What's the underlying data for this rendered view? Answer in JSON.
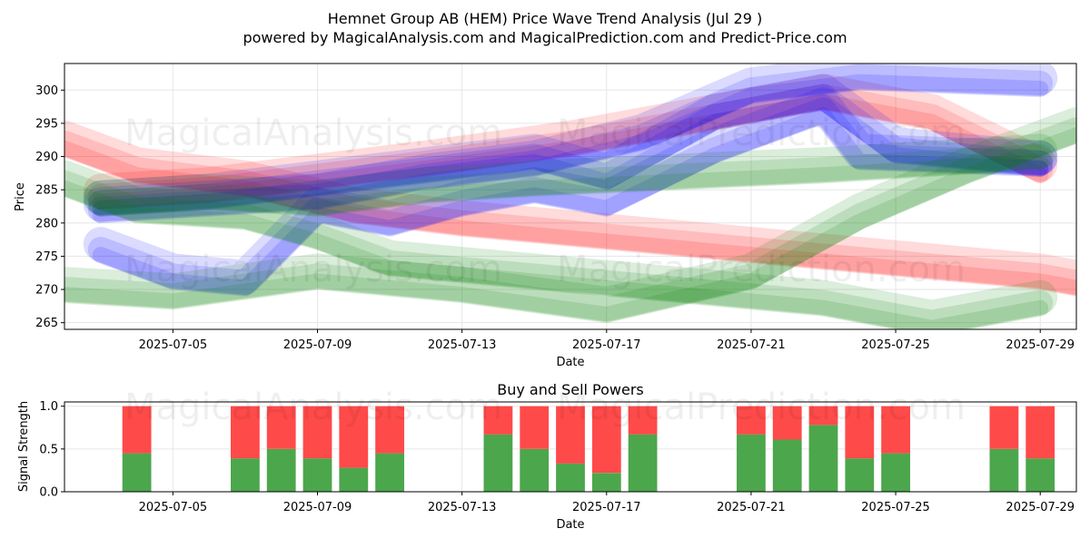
{
  "header": {
    "title": "Hemnet Group AB (HEM) Price Wave Trend Analysis (Jul 29 )",
    "subtitle": "powered by MagicalAnalysis.com and MagicalPrediction.com and Predict-Price.com"
  },
  "watermarks": {
    "analysis": "MagicalAnalysis.com",
    "prediction": "MagicalPrediction.com"
  },
  "chart_data": [
    {
      "type": "area",
      "title": "",
      "xlabel": "Date",
      "ylabel": "Price",
      "xlim": [
        "2025-07-02",
        "2025-07-30"
      ],
      "ylim": [
        264,
        304
      ],
      "x_ticks": [
        "2025-07-05",
        "2025-07-09",
        "2025-07-13",
        "2025-07-17",
        "2025-07-21",
        "2025-07-25",
        "2025-07-29"
      ],
      "y_ticks": [
        265,
        270,
        275,
        280,
        285,
        290,
        295,
        300
      ],
      "grid": true,
      "series": [
        {
          "color": "#ff0000",
          "points": [
            [
              "2025-07-02",
              292
            ],
            [
              "2025-07-04",
              288
            ],
            [
              "2025-07-07",
              286
            ],
            [
              "2025-07-10",
              282
            ],
            [
              "2025-07-13",
              280
            ],
            [
              "2025-07-17",
              278
            ],
            [
              "2025-07-21",
              276
            ],
            [
              "2025-07-25",
              274
            ],
            [
              "2025-07-29",
              272
            ],
            [
              "2025-07-30",
              271
            ]
          ]
        },
        {
          "color": "#ff0000",
          "points": [
            [
              "2025-07-03",
              284
            ],
            [
              "2025-07-06",
              285
            ],
            [
              "2025-07-09",
              287
            ],
            [
              "2025-07-12",
              289
            ],
            [
              "2025-07-16",
              292
            ],
            [
              "2025-07-20",
              296
            ],
            [
              "2025-07-23",
              299
            ],
            [
              "2025-07-26",
              296
            ],
            [
              "2025-07-29",
              288
            ]
          ]
        },
        {
          "color": "#0000ff",
          "points": [
            [
              "2025-07-03",
              283
            ],
            [
              "2025-07-06",
              284
            ],
            [
              "2025-07-09",
              286
            ],
            [
              "2025-07-12",
              288
            ],
            [
              "2025-07-15",
              290
            ],
            [
              "2025-07-17",
              287
            ],
            [
              "2025-07-20",
              296
            ],
            [
              "2025-07-23",
              299
            ],
            [
              "2025-07-25",
              291
            ],
            [
              "2025-07-29",
              289
            ]
          ]
        },
        {
          "color": "#0000ff",
          "points": [
            [
              "2025-07-03",
              276
            ],
            [
              "2025-07-05",
              272
            ],
            [
              "2025-07-07",
              271
            ],
            [
              "2025-07-09",
              282
            ],
            [
              "2025-07-11",
              280
            ],
            [
              "2025-07-13",
              283
            ],
            [
              "2025-07-15",
              285
            ],
            [
              "2025-07-17",
              283
            ],
            [
              "2025-07-20",
              291
            ],
            [
              "2025-07-23",
              297
            ],
            [
              "2025-07-24",
              290
            ],
            [
              "2025-07-29",
              289
            ]
          ]
        },
        {
          "color": "#0000ff",
          "points": [
            [
              "2025-07-03",
              282
            ],
            [
              "2025-07-06",
              283
            ],
            [
              "2025-07-09",
              284
            ],
            [
              "2025-07-12",
              287
            ],
            [
              "2025-07-15",
              289
            ],
            [
              "2025-07-18",
              293
            ],
            [
              "2025-07-21",
              300
            ],
            [
              "2025-07-24",
              302
            ],
            [
              "2025-07-29",
              301
            ]
          ]
        },
        {
          "color": "#008000",
          "points": [
            [
              "2025-07-02",
              270
            ],
            [
              "2025-07-05",
              269
            ],
            [
              "2025-07-09",
              272
            ],
            [
              "2025-07-13",
              270
            ],
            [
              "2025-07-17",
              267
            ],
            [
              "2025-07-21",
              272
            ],
            [
              "2025-07-24",
              281
            ],
            [
              "2025-07-27",
              288
            ],
            [
              "2025-07-30",
              294
            ]
          ]
        },
        {
          "color": "#008000",
          "points": [
            [
              "2025-07-02",
              286
            ],
            [
              "2025-07-04",
              282
            ],
            [
              "2025-07-07",
              281
            ],
            [
              "2025-07-09",
              278
            ],
            [
              "2025-07-11",
              274
            ],
            [
              "2025-07-15",
              272
            ],
            [
              "2025-07-19",
              270
            ],
            [
              "2025-07-23",
              268
            ],
            [
              "2025-07-26",
              265
            ],
            [
              "2025-07-29",
              268
            ]
          ]
        },
        {
          "color": "#008000",
          "points": [
            [
              "2025-07-03",
              283
            ],
            [
              "2025-07-06",
              284
            ],
            [
              "2025-07-09",
              283
            ],
            [
              "2025-07-12",
              285
            ],
            [
              "2025-07-15",
              286
            ],
            [
              "2025-07-19",
              287
            ],
            [
              "2025-07-23",
              288
            ],
            [
              "2025-07-26",
              289
            ],
            [
              "2025-07-29",
              290
            ]
          ]
        }
      ]
    },
    {
      "type": "bar",
      "title": "Buy and Sell Powers",
      "xlabel": "Date",
      "ylabel": "Signal Strength",
      "xlim": [
        "2025-07-02",
        "2025-07-30"
      ],
      "ylim": [
        0,
        1.05
      ],
      "x_ticks": [
        "2025-07-05",
        "2025-07-09",
        "2025-07-13",
        "2025-07-17",
        "2025-07-21",
        "2025-07-25",
        "2025-07-29"
      ],
      "y_ticks": [
        0.0,
        0.5,
        1.0
      ],
      "grid": true,
      "buy_color": "#4ca64c",
      "sell_color": "#ff4a4a",
      "dates": [
        "2025-07-04",
        "2025-07-07",
        "2025-07-08",
        "2025-07-09",
        "2025-07-10",
        "2025-07-11",
        "2025-07-14",
        "2025-07-15",
        "2025-07-16",
        "2025-07-17",
        "2025-07-18",
        "2025-07-21",
        "2025-07-22",
        "2025-07-23",
        "2025-07-24",
        "2025-07-25",
        "2025-07-28",
        "2025-07-29"
      ],
      "buy": [
        0.45,
        0.39,
        0.5,
        0.39,
        0.28,
        0.45,
        0.67,
        0.5,
        0.33,
        0.22,
        0.67,
        0.67,
        0.61,
        0.78,
        0.39,
        0.45,
        0.5,
        0.39
      ],
      "sell": [
        0.55,
        0.61,
        0.5,
        0.61,
        0.72,
        0.55,
        0.33,
        0.5,
        0.67,
        0.78,
        0.33,
        0.33,
        0.39,
        0.22,
        0.61,
        0.55,
        0.5,
        0.61
      ]
    }
  ]
}
